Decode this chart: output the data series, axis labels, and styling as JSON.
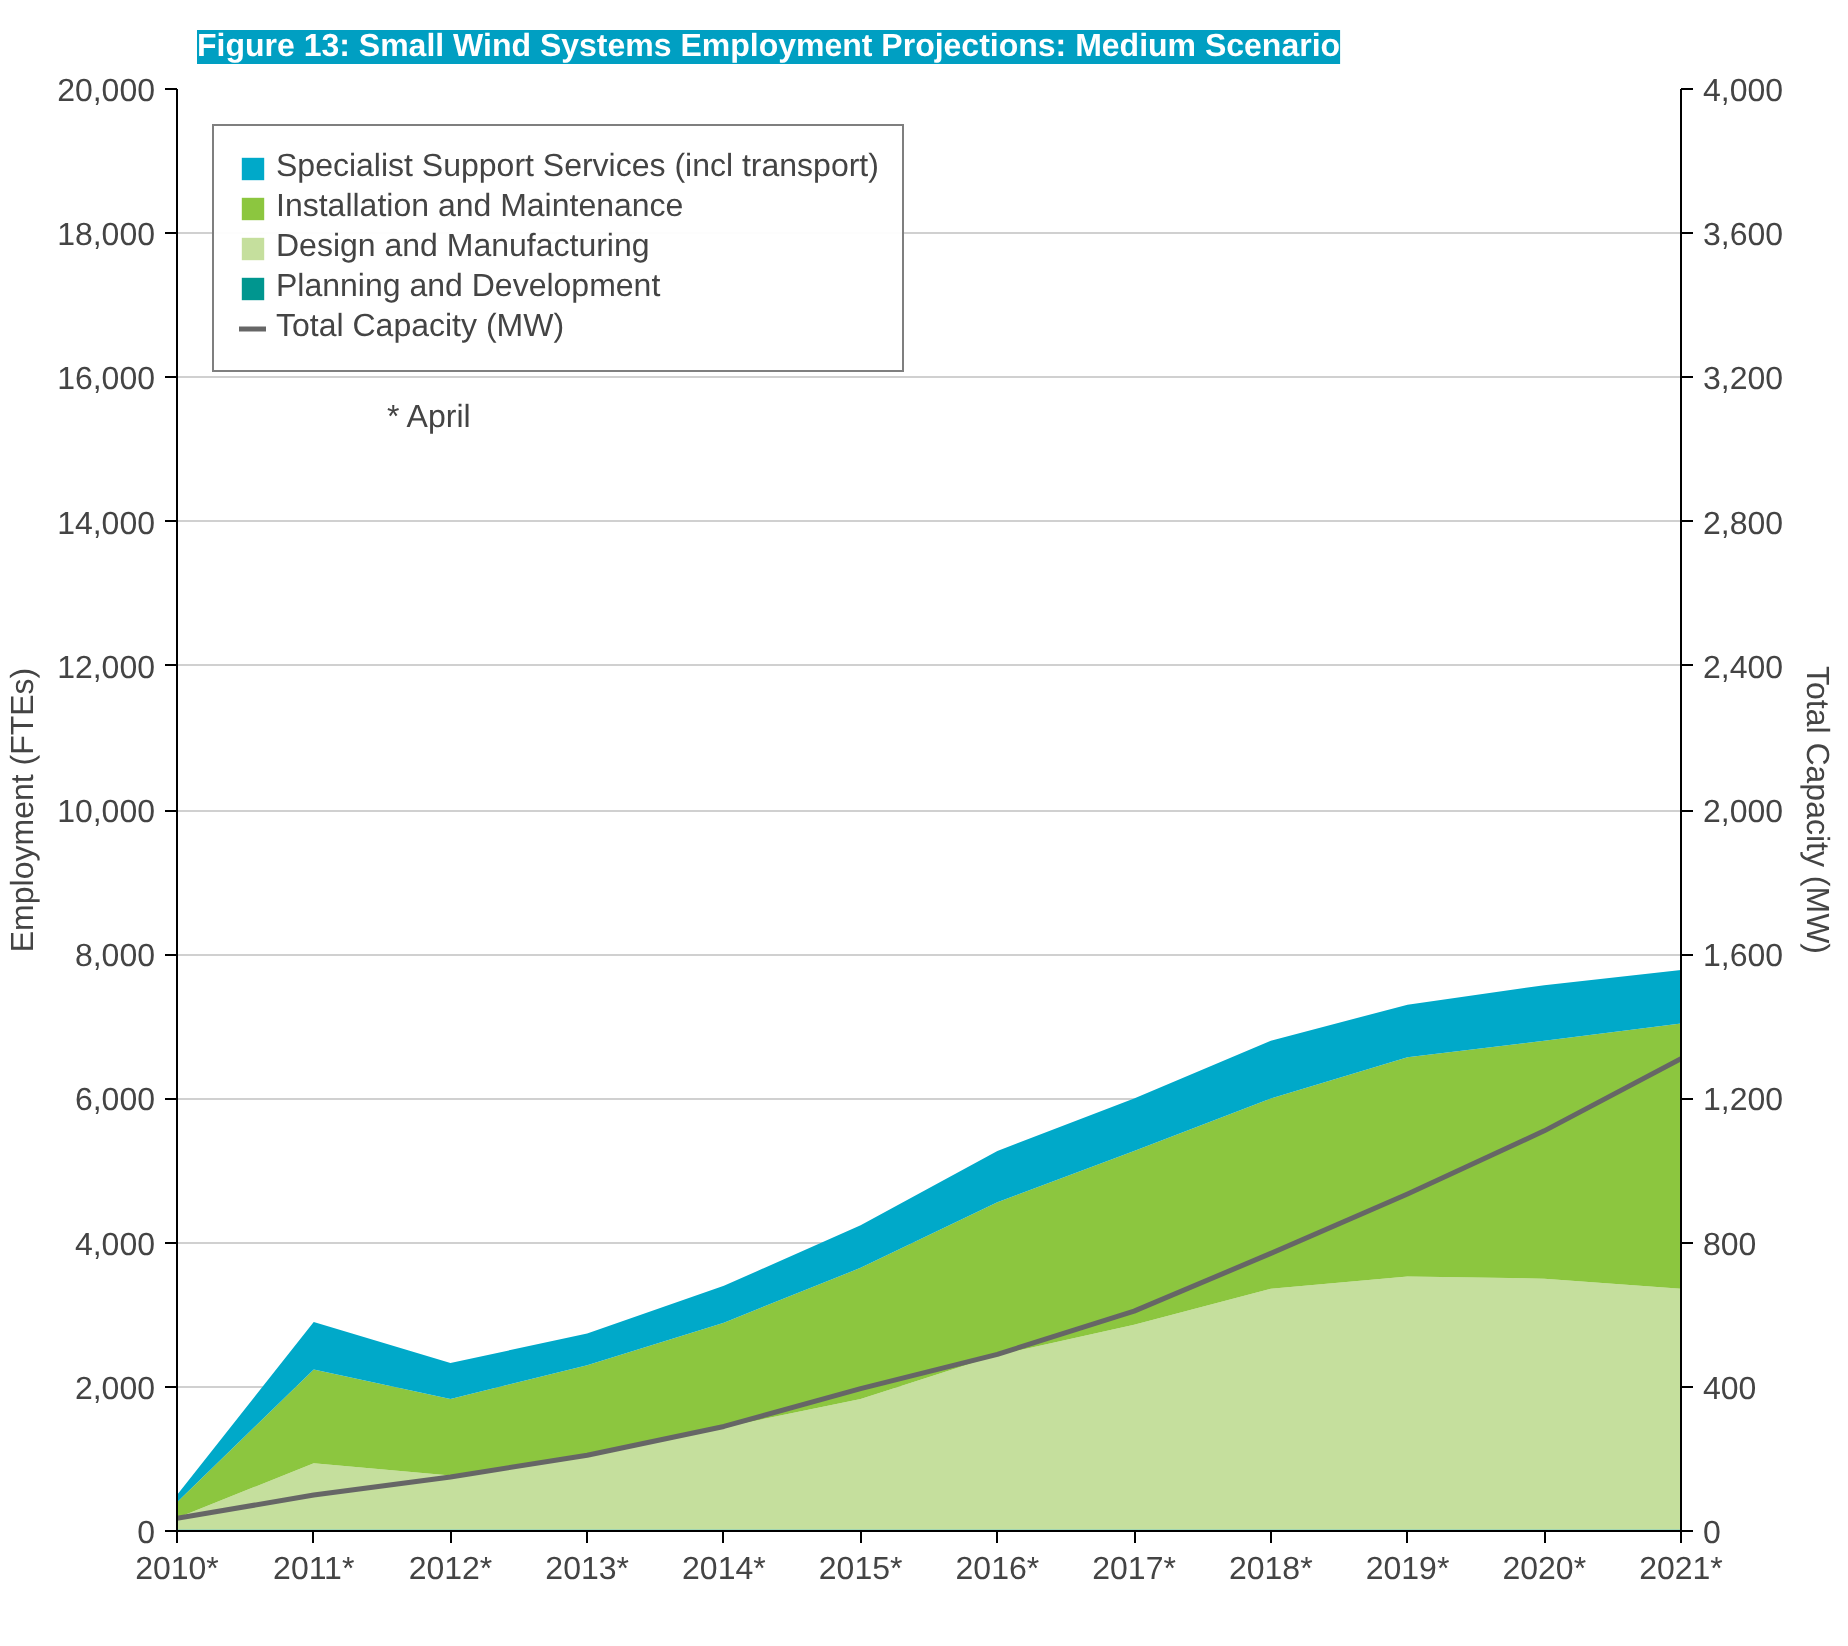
{
  "chart_data": {
    "type": "area",
    "stacked": true,
    "title": "Figure 13: Small Wind Systems Employment Projections: Medium Scenario",
    "categories": [
      "2010*",
      "2011*",
      "2012*",
      "2013*",
      "2014*",
      "2015*",
      "2016*",
      "2017*",
      "2018*",
      "2019*",
      "2020*",
      "2021*"
    ],
    "ylabel": "Employment (FTEs)",
    "y2label": "Total Capacity (MW)",
    "ylim": [
      0,
      20000
    ],
    "yticks": [
      {
        "value": 0,
        "label": "0"
      },
      {
        "value": 2000,
        "label": "2,000"
      },
      {
        "value": 4000,
        "label": "4,000"
      },
      {
        "value": 6000,
        "label": "6,000"
      },
      {
        "value": 8000,
        "label": "8,000"
      },
      {
        "value": 10000,
        "label": "10,000"
      },
      {
        "value": 12000,
        "label": "12,000"
      },
      {
        "value": 14000,
        "label": "14,000"
      },
      {
        "value": 16000,
        "label": "16,000"
      },
      {
        "value": 18000,
        "label": "18,000"
      },
      {
        "value": 20000,
        "label": "20,000"
      }
    ],
    "y2lim": [
      0,
      4000
    ],
    "y2ticks": [
      0,
      400,
      800,
      {
        "value": 1200,
        "label": "1,200"
      },
      {
        "value": 1600,
        "label": "1,600"
      },
      {
        "value": 2000,
        "label": "2,000"
      },
      {
        "value": 2400,
        "label": "2,400"
      },
      {
        "value": 2800,
        "label": "2,800"
      },
      {
        "value": 3200,
        "label": "3,200"
      },
      {
        "value": 3600,
        "label": "3,600"
      },
      {
        "value": 4000,
        "label": "4,000"
      }
    ],
    "series": [
      {
        "name": "Planning and Development",
        "color": "#00968f",
        "values": [
          20,
          20,
          20,
          20,
          20,
          20,
          20,
          20,
          20,
          20,
          20,
          20
        ]
      },
      {
        "name": "Design and Manufacturing",
        "color": "#c5df9d",
        "values": [
          160,
          920,
          750,
          1010,
          1420,
          1810,
          2420,
          2840,
          3340,
          3510,
          3480,
          3340
        ]
      },
      {
        "name": "Installation and Maintenance",
        "color": "#8cc63f",
        "values": [
          220,
          1300,
          1060,
          1270,
          1450,
          1820,
          2120,
          2410,
          2640,
          3040,
          3300,
          3680
        ]
      },
      {
        "name": "Specialist Support Services (incl transport)",
        "color": "#00a9c9",
        "values": [
          100,
          660,
          500,
          440,
          510,
          590,
          710,
          730,
          800,
          730,
          770,
          740
        ]
      },
      {
        "name": "Total Capacity (MW)",
        "type": "line",
        "axis": "y2",
        "color": "#666666",
        "values": [
          35,
          100,
          150,
          210,
          290,
          395,
          490,
          610,
          770,
          935,
          1110,
          1310
        ]
      }
    ],
    "grid": "y",
    "legend": "top left",
    "annotations": [
      "* April"
    ]
  }
}
